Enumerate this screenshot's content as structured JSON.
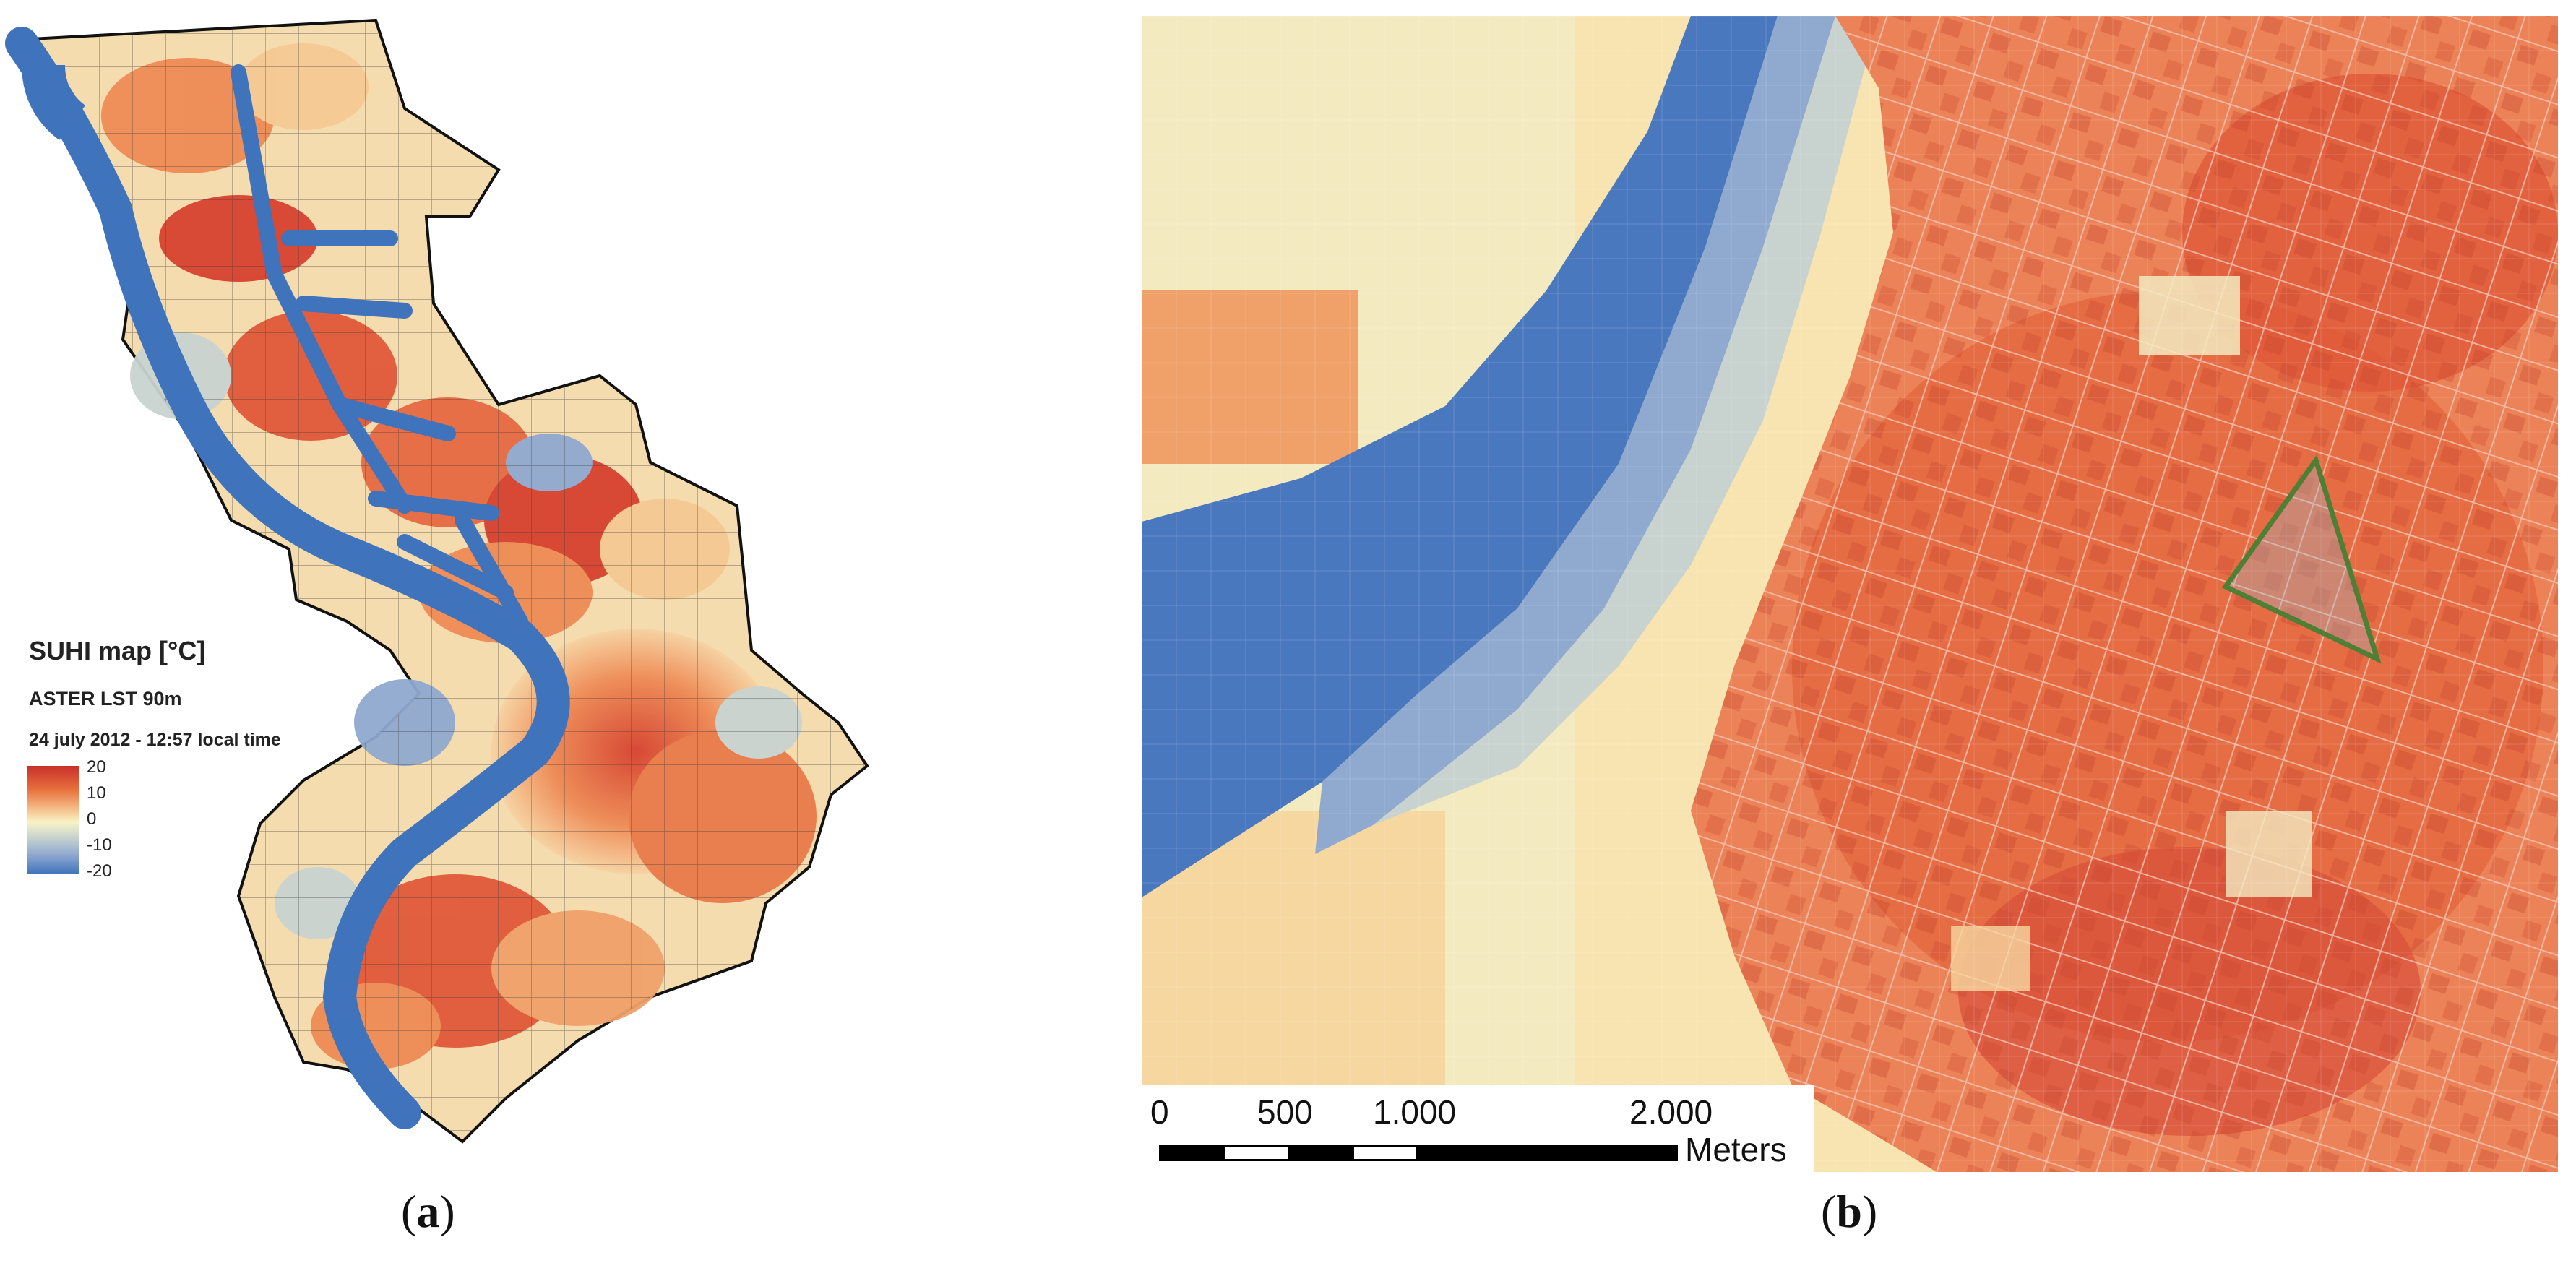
{
  "panel_a": {
    "legend": {
      "title": "SUHI map  [°C]",
      "subtitle": "ASTER LST 90m",
      "timestamp": "24 july 2012 - 12:57 local time",
      "ticks": [
        "20",
        "10",
        "0",
        "-10",
        "-20"
      ],
      "colors": {
        "hot": "#c8302a",
        "warm": "#e8713d",
        "neutral": "#f8f3c6",
        "cool": "#8fa9cf",
        "cold": "#3f73bc"
      }
    },
    "caption": "a"
  },
  "panel_b": {
    "scale_bar": {
      "labels": [
        "0",
        "500",
        "1.000",
        "2.000"
      ],
      "unit": "Meters"
    },
    "marker_color": "#4f7f35",
    "caption": "b"
  }
}
